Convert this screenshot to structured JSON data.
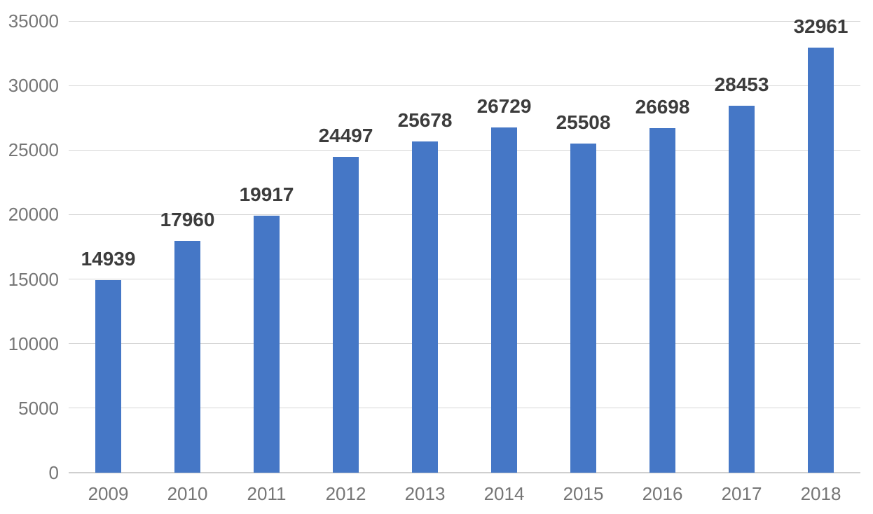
{
  "chart_data": {
    "type": "bar",
    "title": "",
    "xlabel": "",
    "ylabel": "",
    "categories": [
      "2009",
      "2010",
      "2011",
      "2012",
      "2013",
      "2014",
      "2015",
      "2016",
      "2017",
      "2018"
    ],
    "values": [
      14939,
      17960,
      19917,
      24497,
      25678,
      26729,
      25508,
      26698,
      28453,
      32961
    ],
    "value_labels": [
      "14939",
      "17960",
      "19917",
      "24497",
      "25678",
      "26729",
      "25508",
      "26698",
      "28453",
      "32961"
    ],
    "ylim": [
      0,
      35000
    ],
    "yticks": [
      0,
      5000,
      10000,
      15000,
      20000,
      25000,
      30000,
      35000
    ],
    "ytick_labels": [
      "0",
      "5000",
      "10000",
      "15000",
      "20000",
      "25000",
      "30000",
      "35000"
    ],
    "grid": true,
    "legend": false,
    "bar_color": "#4577c6",
    "data_label_color": "#3c3c3c",
    "axis_text_color": "#767676",
    "gridline_color": "#d6d6d6"
  }
}
